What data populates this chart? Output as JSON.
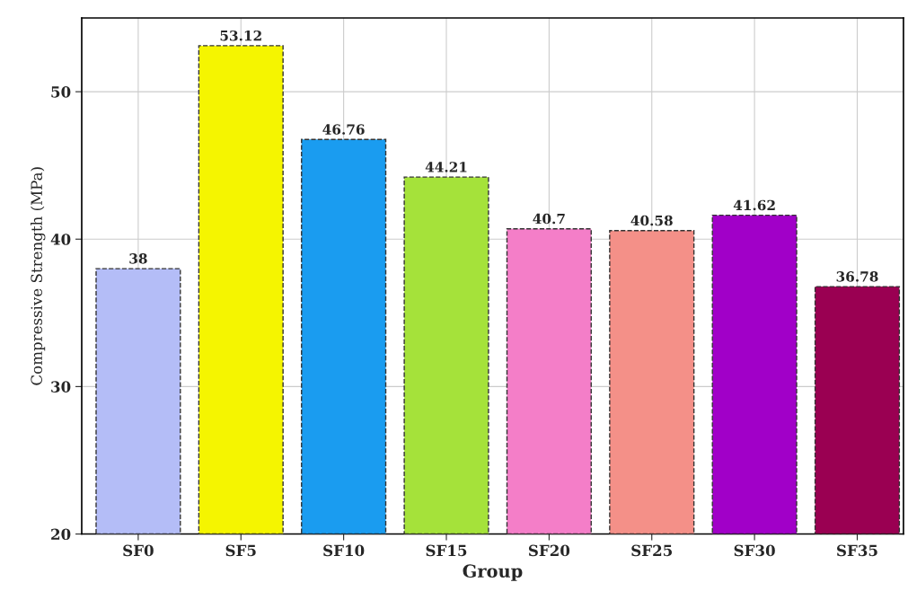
{
  "chart_data": {
    "type": "bar",
    "xlabel": "Group",
    "ylabel": "Compressive Strength (MPa)",
    "categories": [
      "SF0",
      "SF5",
      "SF10",
      "SF15",
      "SF20",
      "SF25",
      "SF30",
      "SF35"
    ],
    "values": [
      38,
      53.12,
      46.76,
      44.21,
      40.7,
      40.58,
      41.62,
      36.78
    ],
    "colors": [
      "#b4bdf7",
      "#f5f500",
      "#1a9cf0",
      "#a5e23a",
      "#f47ec8",
      "#f49088",
      "#a100c8",
      "#9a0052"
    ],
    "ylim": [
      20,
      55
    ],
    "yticks": [
      20,
      30,
      40,
      50
    ],
    "grid": true,
    "data_labels": true,
    "line_style": "dashed"
  }
}
